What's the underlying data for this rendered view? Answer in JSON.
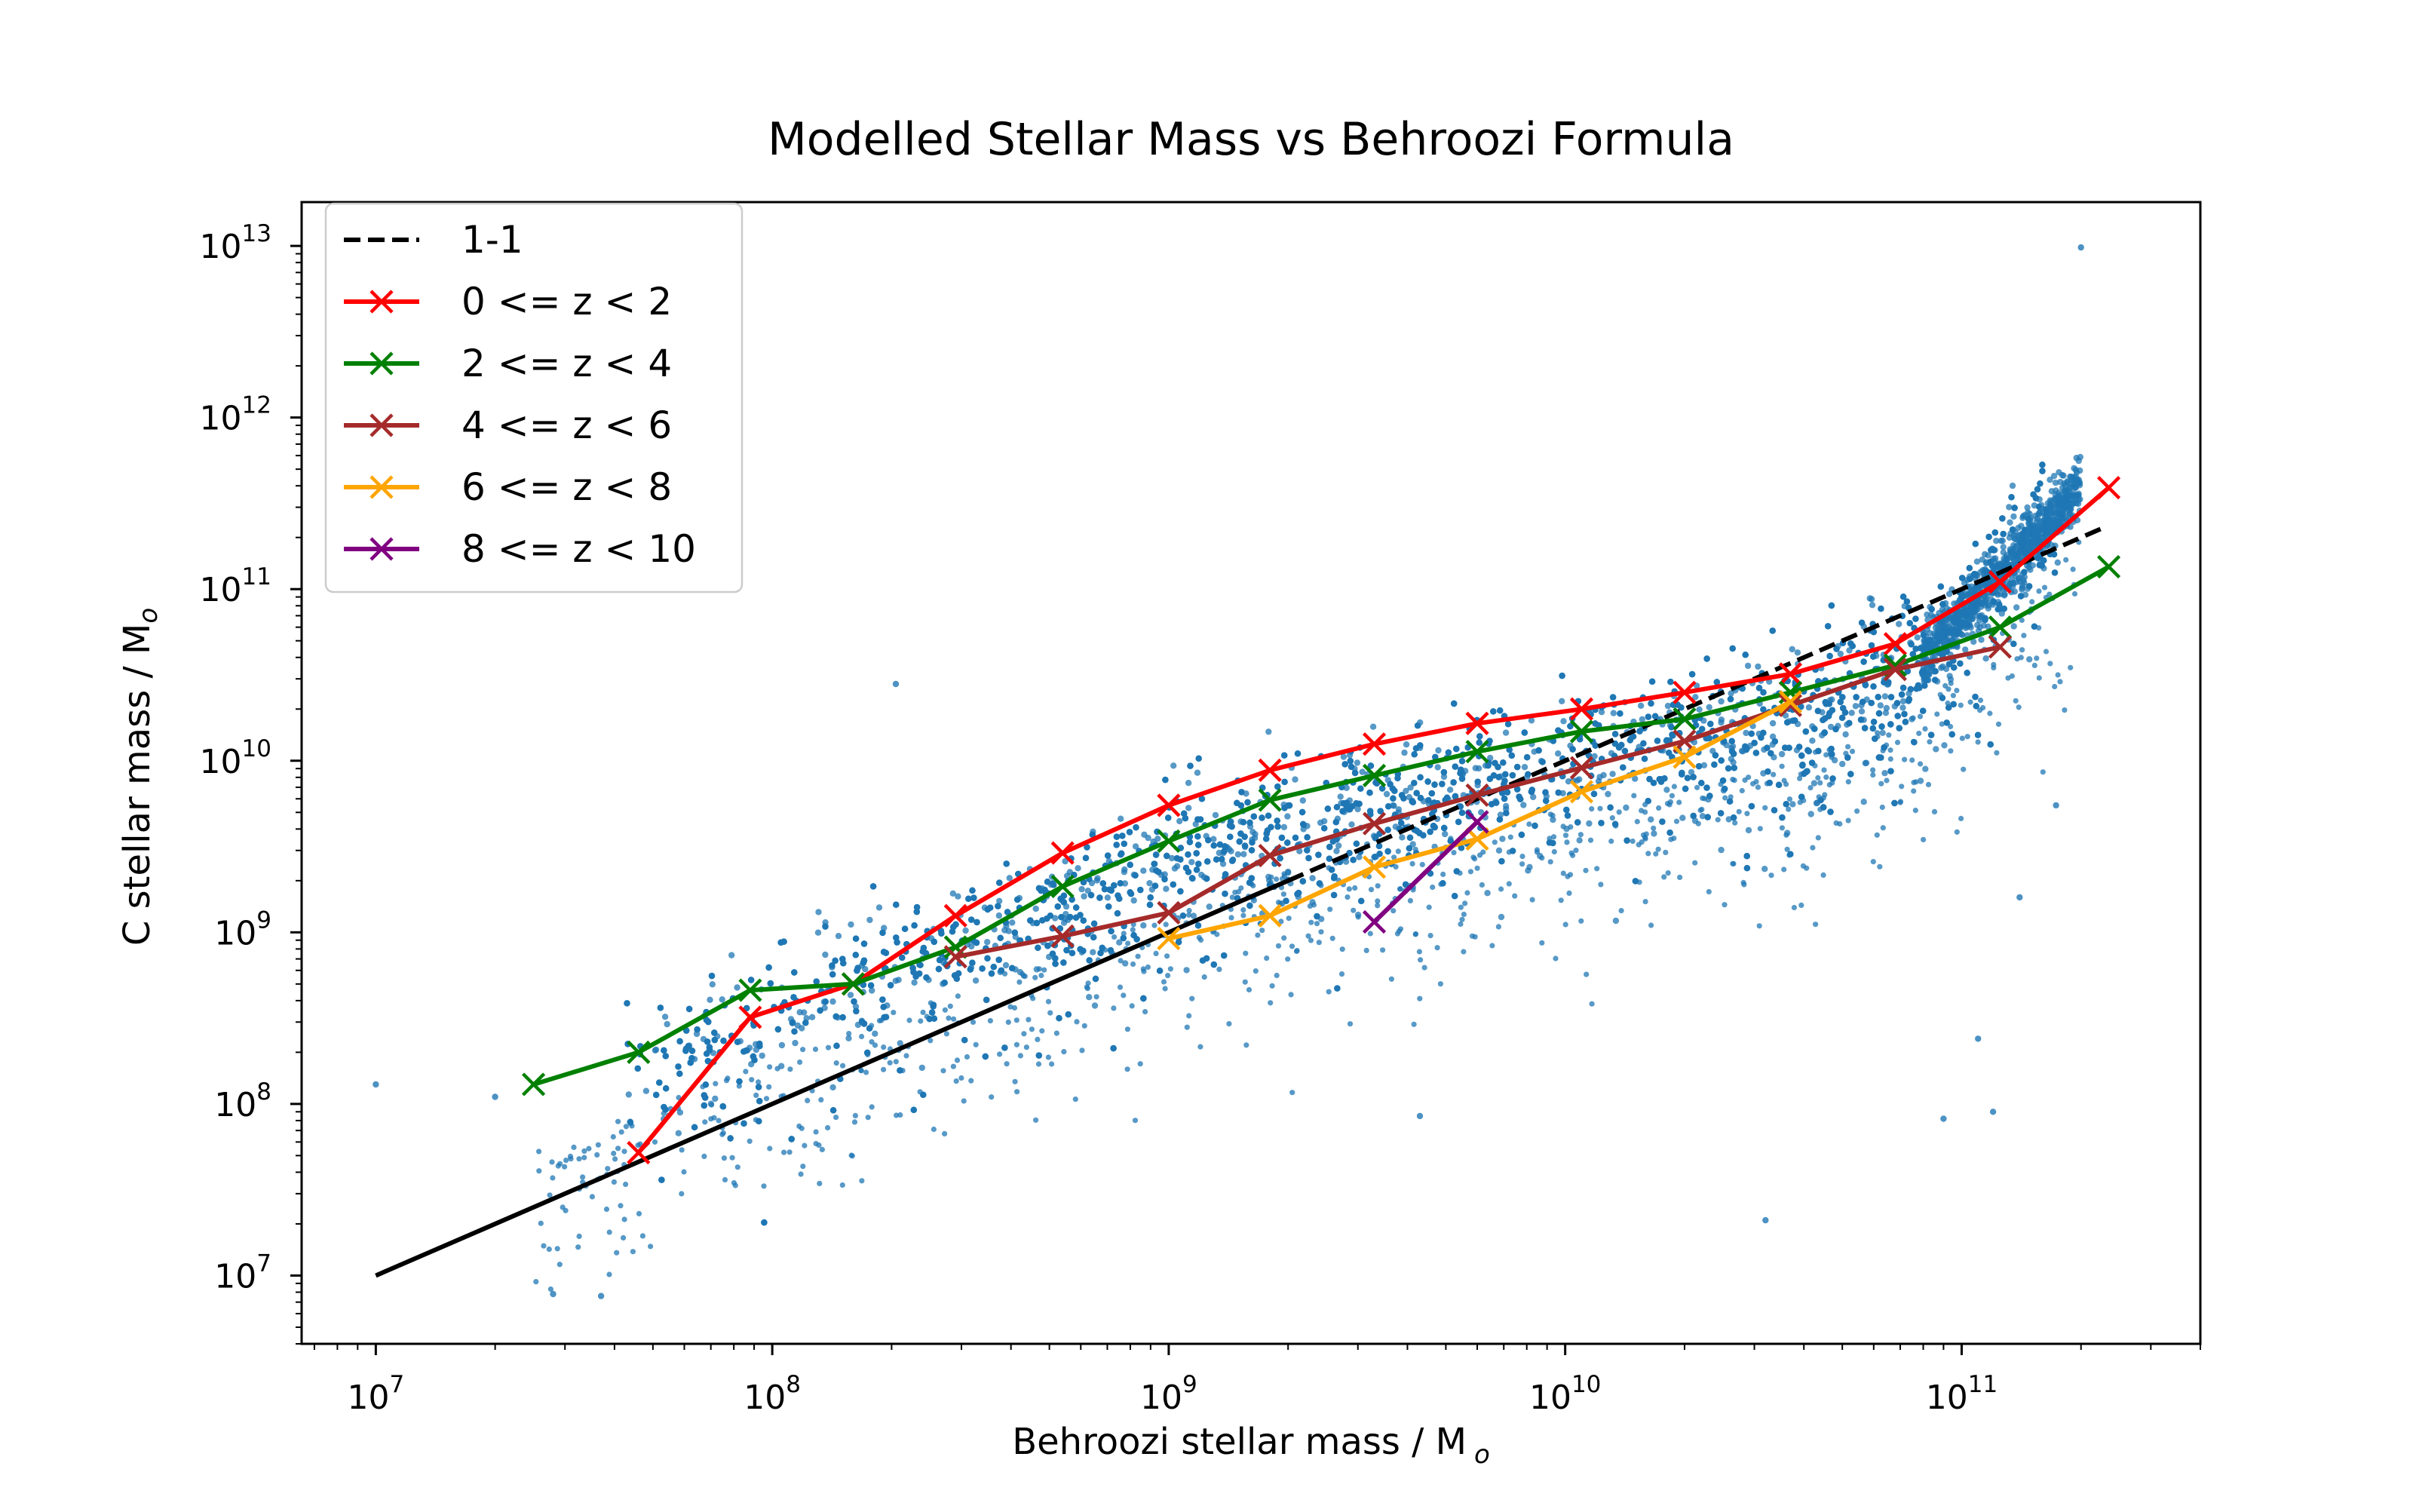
{
  "chart_data": {
    "type": "scatter",
    "title": "Modelled Stellar Mass vs Behroozi Formula",
    "xlabel": "Behroozi stellar mass / M",
    "xlabel_sub": "o",
    "ylabel": "C stellar mass / M",
    "ylabel_sub": "o",
    "xscale": "log",
    "yscale": "log",
    "xlim": [
      6500000,
      400000000000
    ],
    "ylim": [
      4000000,
      18000000000000
    ],
    "x_ticks": [
      {
        "base": "10",
        "exp": "7",
        "value": 10000000
      },
      {
        "base": "10",
        "exp": "8",
        "value": 100000000
      },
      {
        "base": "10",
        "exp": "9",
        "value": 1000000000
      },
      {
        "base": "10",
        "exp": "10",
        "value": 10000000000
      },
      {
        "base": "10",
        "exp": "11",
        "value": 100000000000
      }
    ],
    "y_ticks": [
      {
        "base": "10",
        "exp": "7",
        "value": 10000000
      },
      {
        "base": "10",
        "exp": "8",
        "value": 100000000
      },
      {
        "base": "10",
        "exp": "9",
        "value": 1000000000
      },
      {
        "base": "10",
        "exp": "10",
        "value": 10000000000
      },
      {
        "base": "10",
        "exp": "11",
        "value": 100000000000
      },
      {
        "base": "10",
        "exp": "12",
        "value": 1000000000000
      },
      {
        "base": "10",
        "exp": "13",
        "value": 10000000000000
      }
    ],
    "grid": false,
    "legend_position": "top-left",
    "scatter_color": "#1f77b4",
    "reference_line": {
      "name": "1-1",
      "color": "#000000",
      "x": [
        10000000,
        230000000000
      ],
      "y": [
        10000000,
        230000000000
      ]
    },
    "series": [
      {
        "name": "0 <= z < 2",
        "color": "#ff0000",
        "x": [
          46000000,
          88000000,
          160000000,
          290000000,
          540000000,
          1000000000,
          1800000000,
          3300000000,
          6000000000,
          11000000000,
          20000000000,
          37000000000,
          68000000000,
          125000000000,
          235000000000
        ],
        "y": [
          52000000,
          320000000,
          500000000,
          1250000000,
          2900000000,
          5500000000,
          8800000000,
          12500000000,
          16500000000,
          20000000000,
          25000000000,
          32000000000,
          48000000000,
          110000000000,
          390000000000
        ]
      },
      {
        "name": "2 <= z < 4",
        "color": "#008000",
        "x": [
          25000000,
          46000000,
          88000000,
          160000000,
          290000000,
          540000000,
          1000000000,
          1800000000,
          3300000000,
          6000000000,
          11000000000,
          20000000000,
          37000000000,
          68000000000,
          125000000000,
          235000000000
        ],
        "y": [
          130000000,
          200000000,
          460000000,
          500000000,
          820000000,
          1850000000,
          3400000000,
          5900000000,
          8200000000,
          11300000000,
          14800000000,
          17500000000,
          25000000000,
          36000000000,
          60000000000,
          135000000000
        ]
      },
      {
        "name": "4 <= z < 6",
        "color": "#a52a2a",
        "x": [
          290000000,
          540000000,
          1000000000,
          1800000000,
          3300000000,
          6000000000,
          11000000000,
          20000000000,
          37000000000,
          68000000000,
          125000000000
        ],
        "y": [
          720000000,
          950000000,
          1300000000,
          2800000000,
          4300000000,
          6300000000,
          9100000000,
          13000000000,
          21000000000,
          34000000000,
          46000000000
        ]
      },
      {
        "name": "6 <= z < 8",
        "color": "#ffa500",
        "x": [
          1000000000,
          1800000000,
          3300000000,
          6000000000,
          11000000000,
          20000000000,
          37000000000
        ],
        "y": [
          920000000,
          1250000000,
          2400000000,
          3500000000,
          6600000000,
          10500000000,
          22000000000
        ]
      },
      {
        "name": "8 <= z < 10",
        "color": "#800080",
        "x": [
          3300000000,
          6000000000
        ],
        "y": [
          1150000000,
          4400000000
        ]
      }
    ],
    "scatter_outliers": [
      {
        "x": 10000000,
        "y": 130000000
      },
      {
        "x": 20000000,
        "y": 110000000
      },
      {
        "x": 28000000,
        "y": 7800000
      },
      {
        "x": 37000000,
        "y": 7600000
      },
      {
        "x": 205000000,
        "y": 28000000000
      },
      {
        "x": 4300000000,
        "y": 85000000
      },
      {
        "x": 32000000000,
        "y": 21000000
      },
      {
        "x": 90000000000,
        "y": 82000000
      },
      {
        "x": 110000000000,
        "y": 240000000
      },
      {
        "x": 173000000000,
        "y": 5500000000
      },
      {
        "x": 200000000000,
        "y": 9800000000000
      },
      {
        "x": 120000000000,
        "y": 90000000
      },
      {
        "x": 140000000000,
        "y": 1600000000
      }
    ]
  }
}
